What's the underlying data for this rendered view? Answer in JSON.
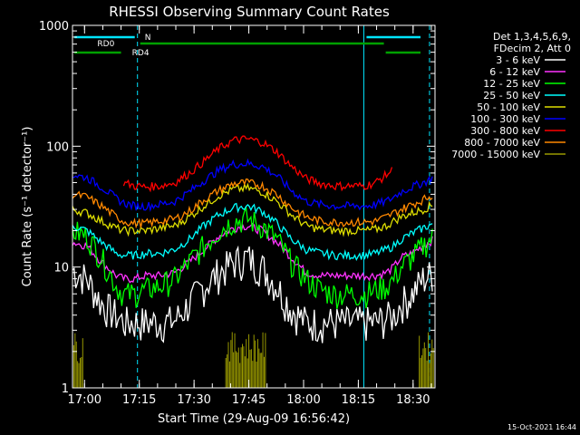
{
  "chart_data": {
    "type": "line",
    "title": "RHESSI Observing Summary Count Rates",
    "xlabel": "Start Time (29-Aug-09 16:56:42)",
    "ylabel": "Count Rate (s⁻¹ detector⁻¹)",
    "y_scale": "log",
    "ylim": [
      1,
      1000
    ],
    "xlim": [
      "16:56:42",
      "18:36:00"
    ],
    "x_ticks": [
      "17:00",
      "17:15",
      "17:30",
      "17:45",
      "18:00",
      "18:15",
      "18:30"
    ],
    "y_ticks": [
      "1",
      "10",
      "100",
      "1000"
    ],
    "legend_position": "right",
    "legend_header": [
      "Det 1,3,4,5,6,9,",
      "FDecim 2, Att 0"
    ],
    "footer": "15-Oct-2021 16:44",
    "flags": [
      {
        "label": "N",
        "color": "#00e5ff"
      },
      {
        "label": "RD0",
        "color": "#00a000"
      },
      {
        "label": "RD4",
        "color": "#00a000"
      }
    ],
    "vertical_markers": [
      "16:56:42",
      "17:14:30",
      "18:16:30",
      "18:34:30"
    ],
    "x_minutes": [
      0,
      4,
      8,
      12,
      14,
      17,
      20,
      24,
      28,
      32,
      36,
      40,
      44,
      48,
      52,
      56,
      60,
      64,
      68,
      72,
      76,
      80,
      83,
      86,
      88,
      90,
      93,
      96,
      99
    ],
    "series": [
      {
        "name": "3 - 6 keV",
        "color": "#ffffff",
        "values": [
          9.5,
          8,
          5,
          4,
          3.5,
          3.5,
          3.5,
          3.5,
          3.6,
          5,
          7,
          9,
          11,
          12,
          10,
          7,
          4.5,
          3.5,
          3.5,
          3.5,
          3.5,
          3.5,
          3.5,
          3.8,
          4,
          5,
          6,
          8,
          9
        ]
      },
      {
        "name": "6 - 12 keV",
        "color": "#ff33ff",
        "values": [
          16,
          15,
          11,
          8.5,
          8,
          8,
          8.5,
          8.5,
          9,
          11,
          14,
          18,
          21,
          22,
          20,
          16,
          12,
          9,
          8.5,
          8.5,
          8.5,
          8.5,
          8.5,
          9,
          10,
          12,
          13,
          15,
          17
        ]
      },
      {
        "name": "12 - 25 keV",
        "color": "#00ff00",
        "values": [
          20,
          18,
          12,
          7,
          6,
          6,
          6.5,
          7,
          8,
          11,
          15,
          20,
          24,
          25,
          22,
          17,
          11,
          8,
          6.5,
          6,
          6,
          6,
          6.5,
          7,
          8,
          10,
          12,
          15,
          18
        ]
      },
      {
        "name": "25 - 50 keV",
        "color": "#00ffff",
        "values": [
          22,
          20,
          16,
          13,
          12.5,
          12.5,
          13,
          13,
          14,
          17,
          22,
          27,
          31,
          32,
          29,
          23,
          17,
          14,
          13,
          12.5,
          12.5,
          12.5,
          13,
          14,
          15,
          17,
          19,
          21,
          23
        ]
      },
      {
        "name": "50 - 100 keV",
        "color": "#dddd00",
        "values": [
          30,
          28,
          24,
          21,
          20,
          20,
          20,
          21,
          22,
          26,
          32,
          39,
          44,
          45,
          42,
          35,
          27,
          22,
          20.5,
          20,
          20,
          20,
          20.5,
          22,
          24,
          26,
          28,
          30,
          33
        ]
      },
      {
        "name": "100 - 300 keV",
        "color": "#0000ff",
        "values": [
          58,
          55,
          46,
          37,
          34,
          32,
          32,
          33,
          35,
          42,
          52,
          63,
          71,
          72,
          68,
          57,
          43,
          35,
          33,
          32,
          32,
          32,
          33,
          35,
          38,
          42,
          46,
          50,
          55
        ]
      },
      {
        "name": "300 - 800 keV",
        "color": "#ff0000",
        "values": [
          null,
          null,
          null,
          null,
          50,
          47,
          46,
          47,
          50,
          60,
          75,
          95,
          112,
          115,
          108,
          90,
          68,
          54,
          49,
          47,
          47,
          47,
          50,
          58,
          65,
          null,
          null,
          null,
          null
        ]
      },
      {
        "name": "800 - 7000 keV",
        "color": "#ff8800",
        "values": [
          40,
          38,
          32,
          26,
          24,
          23,
          23,
          24,
          25,
          29,
          36,
          43,
          49,
          50,
          47,
          40,
          31,
          26,
          24,
          23.5,
          23.5,
          23.5,
          24,
          26,
          28,
          30,
          33,
          36,
          40
        ]
      },
      {
        "name": "7000 - 15000 keV",
        "color": "#999900",
        "values": [
          2.5,
          1.1,
          null,
          null,
          null,
          null,
          null,
          null,
          null,
          null,
          null,
          null,
          2.6,
          2.6,
          2.6,
          null,
          null,
          null,
          null,
          null,
          null,
          null,
          null,
          null,
          null,
          null,
          null,
          null,
          2.5
        ]
      }
    ]
  }
}
